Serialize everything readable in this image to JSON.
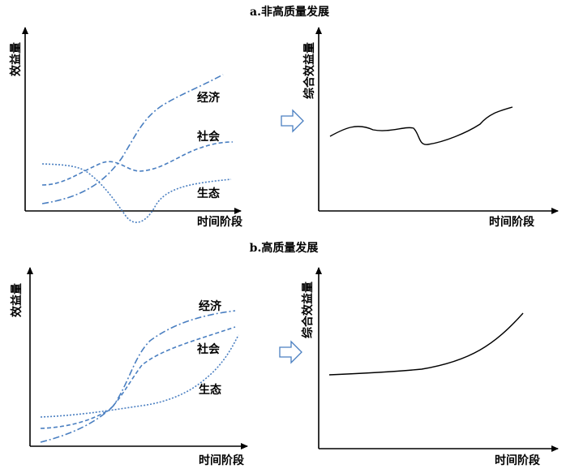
{
  "panels": {
    "a": {
      "title": "a.非高质量发展",
      "left": {
        "y_label": "效益量",
        "x_label": "时间阶段",
        "series": {
          "economy": "经济",
          "society": "社会",
          "ecology": "生态"
        }
      },
      "right": {
        "y_label": "综合效益量",
        "x_label": "时间阶段"
      }
    },
    "b": {
      "title": "b.高质量发展",
      "left": {
        "y_label": "效益量",
        "x_label": "时间阶段",
        "series": {
          "economy": "经济",
          "society": "社会",
          "ecology": "生态"
        }
      },
      "right": {
        "y_label": "综合效益量",
        "x_label": "时间阶段"
      }
    }
  },
  "colors": {
    "series_line": "#4a7fc1",
    "total_line": "#000000",
    "axes": "#000000"
  },
  "icons": {
    "transition_arrow": "hollow-right-arrow-icon"
  }
}
